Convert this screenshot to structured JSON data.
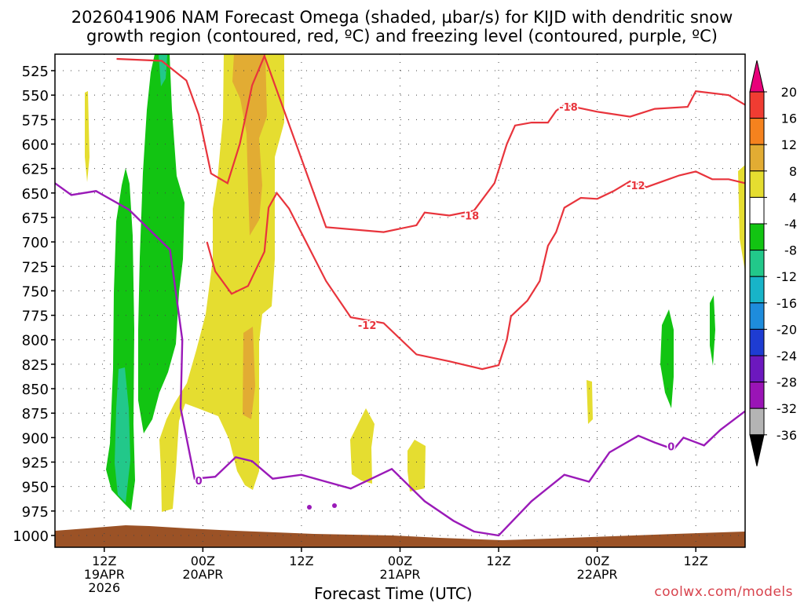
{
  "title_line1": "2026041906 NAM Forecast Omega (shaded, µbar/s) for KIJD with dendritic snow",
  "title_line2": "growth region (contoured, red, ºC) and freezing level (contoured, purple, ºC)",
  "credit": "coolwx.com/models",
  "chart_data": {
    "type": "time-height contour",
    "title": "2026041906 NAM Forecast Omega (shaded, µbar/s) for KIJD with dendritic snow growth region (contoured, red, ºC) and freezing level (contoured, purple, ºC)",
    "xlabel": "Forecast Time (UTC)",
    "ylabel": "Pressure (mb)",
    "y_ticks": [
      525,
      550,
      575,
      600,
      625,
      650,
      675,
      700,
      725,
      750,
      775,
      800,
      825,
      850,
      875,
      900,
      925,
      950,
      975,
      1000
    ],
    "x_ticks": [
      {
        "hour": 6,
        "label": "12Z",
        "sub1": "19APR",
        "sub2": "2026"
      },
      {
        "hour": 18,
        "label": "00Z",
        "sub1": "20APR",
        "sub2": ""
      },
      {
        "hour": 30,
        "label": "12Z",
        "sub1": "",
        "sub2": ""
      },
      {
        "hour": 42,
        "label": "00Z",
        "sub1": "21APR",
        "sub2": ""
      },
      {
        "hour": 54,
        "label": "12Z",
        "sub1": "",
        "sub2": ""
      },
      {
        "hour": 66,
        "label": "00Z",
        "sub1": "22APR",
        "sub2": ""
      },
      {
        "hour": 78,
        "label": "12Z",
        "sub1": "",
        "sub2": ""
      }
    ],
    "x_range_hours": [
      0,
      84
    ],
    "y_range_mb": [
      507,
      1012
    ],
    "colorbar": {
      "labels": [
        "20",
        "16",
        "12",
        "8",
        "4",
        "-4",
        "-8",
        "-12",
        "-16",
        "-20",
        "-24",
        "-28",
        "-32",
        "-36"
      ],
      "colors": [
        "#e8007a",
        "#f03c32",
        "#f5821e",
        "#e2ac33",
        "#e5dd30",
        "#ffffff",
        "#12c412",
        "#22c88a",
        "#18b4c8",
        "#1e8cdc",
        "#1e3cd2",
        "#6c18be",
        "#9a14b6",
        "#b4b4b4",
        "#000000"
      ]
    },
    "contour_labels": [
      {
        "text": "-18",
        "hour": 62.5,
        "mb": 562,
        "color": "#e8343c"
      },
      {
        "text": "-18",
        "hour": 50.5,
        "mb": 673,
        "color": "#e8343c"
      },
      {
        "text": "-12",
        "hour": 38,
        "mb": 785,
        "color": "#e8343c"
      },
      {
        "text": "-12",
        "hour": 70.7,
        "mb": 642,
        "color": "#e8343c"
      },
      {
        "text": "0",
        "hour": 17.5,
        "mb": 944,
        "color": "#9a1ab8"
      },
      {
        "text": "0",
        "hour": 75,
        "mb": 909,
        "color": "#9a1ab8"
      }
    ],
    "freezing_level_0C": [
      [
        0,
        640
      ],
      [
        2,
        652
      ],
      [
        5,
        648
      ],
      [
        9,
        667
      ],
      [
        14,
        708
      ],
      [
        15.5,
        800
      ],
      [
        15.3,
        870
      ],
      [
        17,
        942
      ],
      [
        19.5,
        940
      ],
      [
        22,
        920
      ],
      [
        24,
        924
      ],
      [
        26.5,
        942
      ],
      [
        30,
        938
      ],
      [
        33,
        945
      ],
      [
        36,
        952
      ],
      [
        41,
        932
      ],
      [
        45,
        965
      ],
      [
        48.5,
        985
      ],
      [
        51,
        996
      ],
      [
        54,
        1000
      ],
      [
        58,
        965
      ],
      [
        62,
        938
      ],
      [
        65,
        945
      ],
      [
        67.5,
        915
      ],
      [
        71,
        898
      ],
      [
        73,
        905
      ],
      [
        75.3,
        912
      ],
      [
        76.5,
        900
      ],
      [
        79,
        908
      ],
      [
        81,
        892
      ],
      [
        84,
        873
      ]
    ],
    "isotherm_minus18C": [
      [
        7.5,
        513
      ],
      [
        13,
        515
      ],
      [
        16,
        535
      ],
      [
        17.5,
        570
      ],
      [
        19,
        630
      ],
      [
        21,
        640
      ],
      [
        22.5,
        600
      ],
      [
        24,
        540
      ],
      [
        25.5,
        510
      ],
      [
        33,
        685
      ],
      [
        40,
        690
      ],
      [
        44,
        683
      ],
      [
        45,
        670
      ],
      [
        48,
        673
      ],
      [
        51,
        668
      ],
      [
        53.5,
        640
      ],
      [
        55,
        600
      ],
      [
        56,
        581
      ],
      [
        58,
        578
      ],
      [
        60,
        578
      ],
      [
        61,
        566
      ],
      [
        62,
        560
      ],
      [
        66,
        567
      ],
      [
        70,
        572
      ],
      [
        73,
        564
      ],
      [
        77,
        562
      ],
      [
        78,
        546
      ],
      [
        82,
        550
      ],
      [
        84,
        560
      ]
    ],
    "isotherm_minus12C": [
      [
        18.5,
        700
      ],
      [
        19.5,
        730
      ],
      [
        21.5,
        753
      ],
      [
        23.5,
        745
      ],
      [
        25.5,
        710
      ],
      [
        26,
        665
      ],
      [
        27,
        650
      ],
      [
        28.5,
        666
      ],
      [
        33,
        740
      ],
      [
        36,
        777
      ],
      [
        40,
        783
      ],
      [
        44,
        815
      ],
      [
        48,
        822
      ],
      [
        52,
        830
      ],
      [
        54,
        826
      ],
      [
        55,
        800
      ],
      [
        55.5,
        776
      ],
      [
        57.5,
        760
      ],
      [
        59,
        740
      ],
      [
        60,
        704
      ],
      [
        61,
        690
      ],
      [
        62,
        665
      ],
      [
        64,
        655
      ],
      [
        66,
        656
      ],
      [
        68,
        648
      ],
      [
        70,
        638
      ],
      [
        72,
        644
      ],
      [
        74,
        638
      ],
      [
        76,
        632
      ],
      [
        78,
        628
      ],
      [
        80,
        636
      ],
      [
        82,
        636
      ],
      [
        84,
        640
      ]
    ]
  }
}
